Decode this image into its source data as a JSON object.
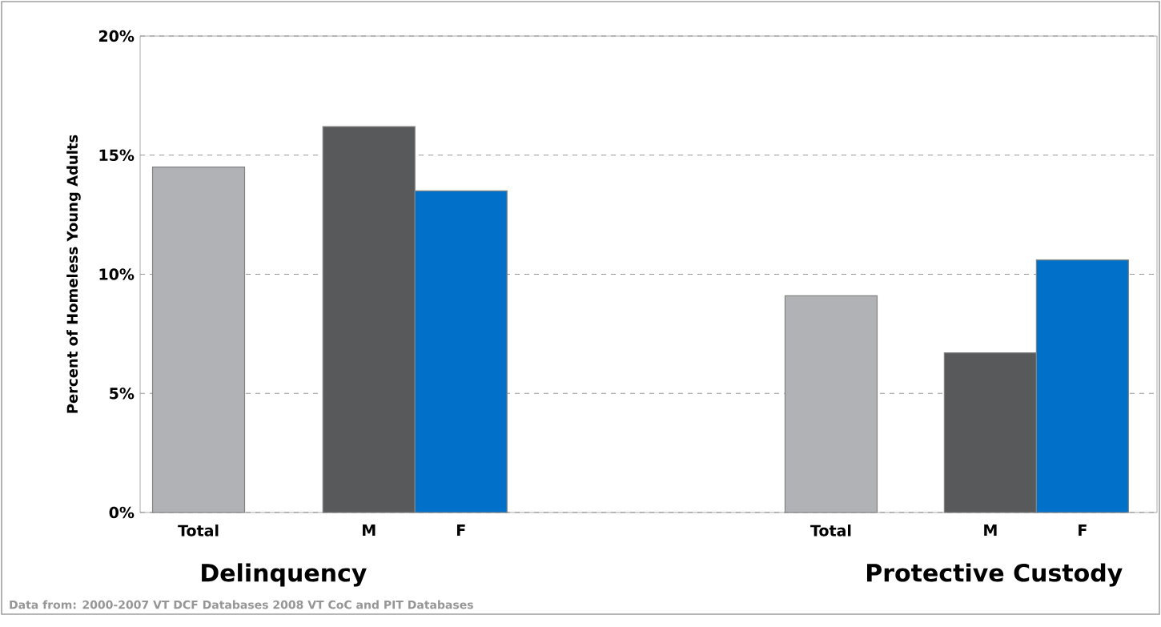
{
  "chart_data": {
    "type": "bar",
    "ylabel": "Percent of Homeless Young Adults",
    "categories": [
      "Total",
      "M",
      "F",
      "Total",
      "M",
      "F"
    ],
    "values": [
      14.5,
      16.2,
      13.5,
      9.1,
      6.7,
      10.6
    ],
    "colors": [
      "#b1b2b6",
      "#58595b",
      "#0070c8",
      "#b1b2b6",
      "#58595b",
      "#0070c8"
    ],
    "ylim": [
      0,
      20
    ],
    "yticks": [
      {
        "value": 0,
        "label": "0%"
      },
      {
        "value": 5,
        "label": "5%"
      },
      {
        "value": 10,
        "label": "10%"
      },
      {
        "value": 15,
        "label": "15%"
      },
      {
        "value": 20,
        "label": "20%"
      }
    ],
    "grid": "y",
    "annotations": [
      "Delinquency",
      "Protective Custody",
      "Data from: 2000-2007 VT DCF Databases 2008 VT CoC and PIT Databases"
    ]
  }
}
